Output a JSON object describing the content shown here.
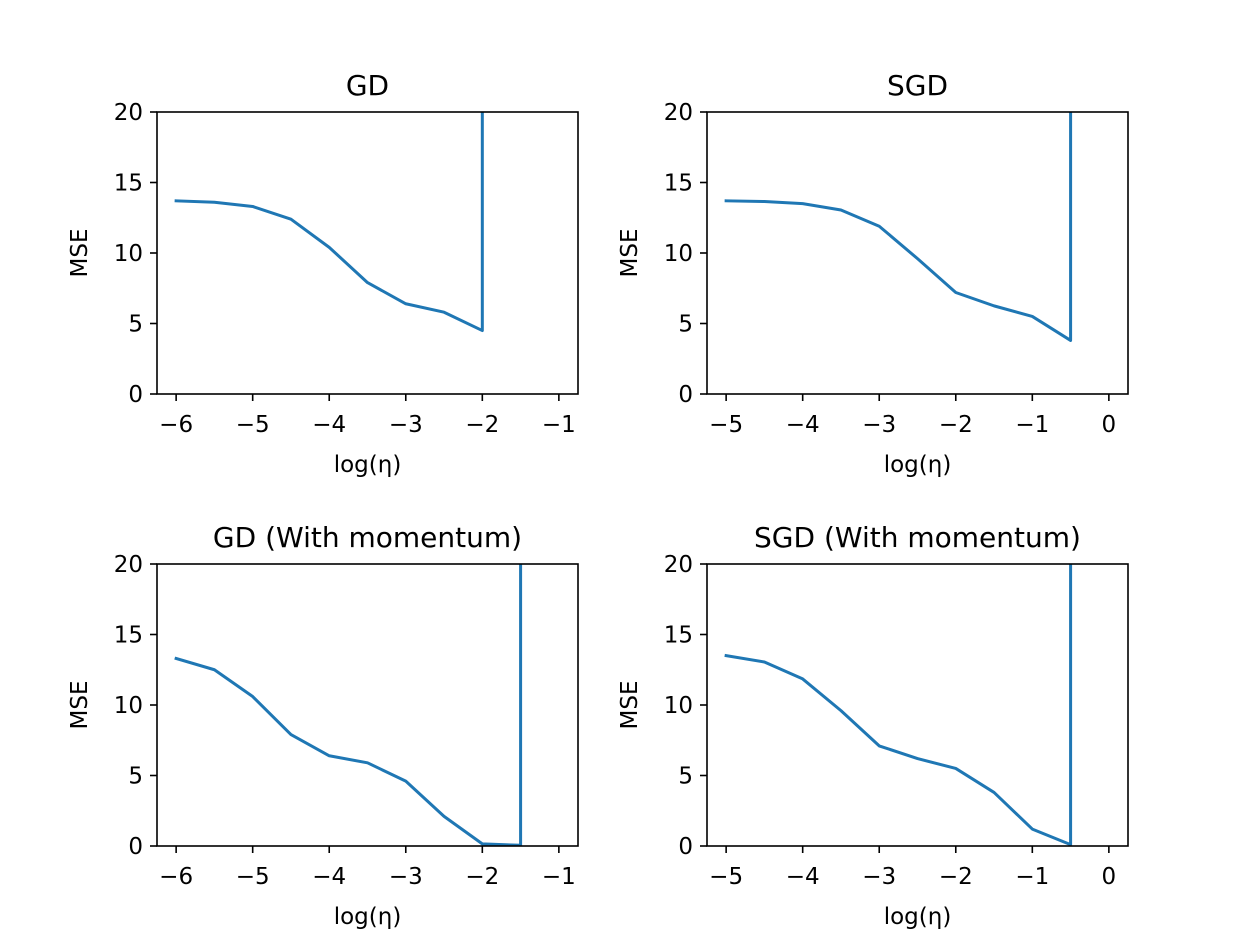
{
  "chart_data": [
    {
      "type": "line",
      "title": "GD",
      "xlabel": "log(η)",
      "ylabel": "MSE",
      "xlim": [
        -6.25,
        -0.75
      ],
      "ylim": [
        0,
        20
      ],
      "xticks": [
        -6,
        -5,
        -4,
        -3,
        -2,
        -1
      ],
      "xtick_labels": [
        "−6",
        "−5",
        "−4",
        "−3",
        "−2",
        "−1"
      ],
      "yticks": [
        0,
        5,
        10,
        15,
        20
      ],
      "ytick_labels": [
        "0",
        "5",
        "10",
        "15",
        "20"
      ],
      "grid": false,
      "series": [
        {
          "color": "#1f77b4",
          "x": [
            -6,
            -5.5,
            -5,
            -4.5,
            -4,
            -3.5,
            -3,
            -2.5,
            -2,
            -2
          ],
          "y": [
            13.7,
            13.6,
            13.3,
            12.4,
            10.4,
            7.9,
            6.4,
            5.8,
            4.5,
            20
          ]
        }
      ]
    },
    {
      "type": "line",
      "title": "SGD",
      "xlabel": "log(η)",
      "ylabel": "MSE",
      "xlim": [
        -5.25,
        0.25
      ],
      "ylim": [
        0,
        20
      ],
      "xticks": [
        -5,
        -4,
        -3,
        -2,
        -1,
        0
      ],
      "xtick_labels": [
        "−5",
        "−4",
        "−3",
        "−2",
        "−1",
        "0"
      ],
      "yticks": [
        0,
        5,
        10,
        15,
        20
      ],
      "ytick_labels": [
        "0",
        "5",
        "10",
        "15",
        "20"
      ],
      "grid": false,
      "series": [
        {
          "color": "#1f77b4",
          "x": [
            -5,
            -4.5,
            -4,
            -3.5,
            -3,
            -2.5,
            -2,
            -1.5,
            -1,
            -0.5,
            -0.5
          ],
          "y": [
            13.7,
            13.65,
            13.5,
            13.05,
            11.9,
            9.6,
            7.2,
            6.25,
            5.5,
            3.8,
            20
          ]
        }
      ]
    },
    {
      "type": "line",
      "title": "GD (With momentum)",
      "xlabel": "log(η)",
      "ylabel": "MSE",
      "xlim": [
        -6.25,
        -0.75
      ],
      "ylim": [
        0,
        20
      ],
      "xticks": [
        -6,
        -5,
        -4,
        -3,
        -2,
        -1
      ],
      "xtick_labels": [
        "−6",
        "−5",
        "−4",
        "−3",
        "−2",
        "−1"
      ],
      "yticks": [
        0,
        5,
        10,
        15,
        20
      ],
      "ytick_labels": [
        "0",
        "5",
        "10",
        "15",
        "20"
      ],
      "grid": false,
      "series": [
        {
          "color": "#1f77b4",
          "x": [
            -6,
            -5.5,
            -5,
            -4.5,
            -4,
            -3.5,
            -3,
            -2.5,
            -2,
            -1.5,
            -1.5
          ],
          "y": [
            13.3,
            12.5,
            10.6,
            7.9,
            6.4,
            5.9,
            4.6,
            2.1,
            0.15,
            0.05,
            20
          ]
        }
      ]
    },
    {
      "type": "line",
      "title": "SGD (With momentum)",
      "xlabel": "log(η)",
      "ylabel": "MSE",
      "xlim": [
        -5.25,
        0.25
      ],
      "ylim": [
        0,
        20
      ],
      "xticks": [
        -5,
        -4,
        -3,
        -2,
        -1,
        0
      ],
      "xtick_labels": [
        "−5",
        "−4",
        "−3",
        "−2",
        "−1",
        "0"
      ],
      "yticks": [
        0,
        5,
        10,
        15,
        20
      ],
      "ytick_labels": [
        "0",
        "5",
        "10",
        "15",
        "20"
      ],
      "grid": false,
      "series": [
        {
          "color": "#1f77b4",
          "x": [
            -5,
            -4.5,
            -4,
            -3.5,
            -3,
            -2.5,
            -2,
            -1.5,
            -1,
            -0.5,
            -0.5
          ],
          "y": [
            13.5,
            13.05,
            11.85,
            9.6,
            7.1,
            6.2,
            5.5,
            3.8,
            1.2,
            0.1,
            20
          ]
        }
      ]
    }
  ]
}
